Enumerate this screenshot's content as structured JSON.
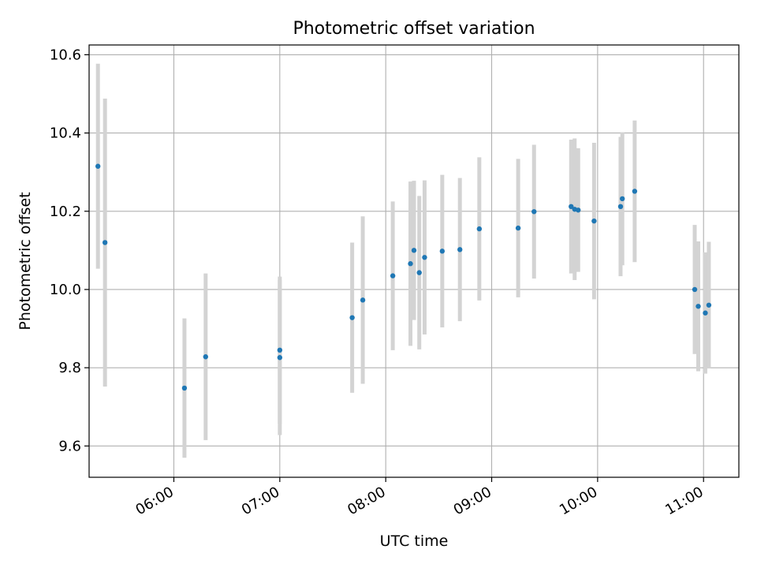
{
  "chart_data": {
    "type": "scatter",
    "title": "Photometric offset variation",
    "xlabel": "UTC time",
    "ylabel": "Photometric offset",
    "x_ticks": [
      "06:00",
      "07:00",
      "08:00",
      "09:00",
      "10:00",
      "11:00"
    ],
    "x_tick_hours": [
      6,
      7,
      8,
      9,
      10,
      11
    ],
    "y_ticks": [
      "9.6",
      "9.8",
      "10.0",
      "10.2",
      "10.4",
      "10.6"
    ],
    "y_tick_values": [
      9.6,
      9.8,
      10.0,
      10.2,
      10.4,
      10.6
    ],
    "xlim": [
      "05:12",
      "11:20"
    ],
    "ylim": [
      9.52,
      10.625
    ],
    "grid": true,
    "point_color": "#1f77b4",
    "errorbar_color": "#d3d3d3",
    "points": [
      {
        "time": "05:17",
        "y": 10.315,
        "err": 0.262
      },
      {
        "time": "05:21",
        "y": 10.12,
        "err": 0.368
      },
      {
        "time": "06:06",
        "y": 9.748,
        "err": 0.178
      },
      {
        "time": "06:18",
        "y": 9.828,
        "err": 0.213
      },
      {
        "time": "07:00",
        "y": 9.826,
        "err": 0.198
      },
      {
        "time": "07:00",
        "y": 9.845,
        "err": 0.188
      },
      {
        "time": "07:41",
        "y": 9.928,
        "err": 0.192
      },
      {
        "time": "07:47",
        "y": 9.973,
        "err": 0.214
      },
      {
        "time": "08:04",
        "y": 10.035,
        "err": 0.19
      },
      {
        "time": "08:14",
        "y": 10.066,
        "err": 0.21
      },
      {
        "time": "08:16",
        "y": 10.1,
        "err": 0.178
      },
      {
        "time": "08:19",
        "y": 10.043,
        "err": 0.196
      },
      {
        "time": "08:22",
        "y": 10.082,
        "err": 0.197
      },
      {
        "time": "08:32",
        "y": 10.098,
        "err": 0.195
      },
      {
        "time": "08:42",
        "y": 10.102,
        "err": 0.183
      },
      {
        "time": "08:53",
        "y": 10.155,
        "err": 0.183
      },
      {
        "time": "09:15",
        "y": 10.157,
        "err": 0.177
      },
      {
        "time": "09:24",
        "y": 10.199,
        "err": 0.171
      },
      {
        "time": "09:45",
        "y": 10.212,
        "err": 0.171
      },
      {
        "time": "09:47",
        "y": 10.205,
        "err": 0.181
      },
      {
        "time": "09:49",
        "y": 10.203,
        "err": 0.158
      },
      {
        "time": "09:58",
        "y": 10.175,
        "err": 0.2
      },
      {
        "time": "10:13",
        "y": 10.212,
        "err": 0.178
      },
      {
        "time": "10:14",
        "y": 10.232,
        "err": 0.17
      },
      {
        "time": "10:21",
        "y": 10.251,
        "err": 0.181
      },
      {
        "time": "10:55",
        "y": 10.0,
        "err": 0.165
      },
      {
        "time": "10:57",
        "y": 9.957,
        "err": 0.166
      },
      {
        "time": "11:01",
        "y": 9.94,
        "err": 0.155
      },
      {
        "time": "11:03",
        "y": 9.96,
        "err": 0.162
      }
    ]
  }
}
